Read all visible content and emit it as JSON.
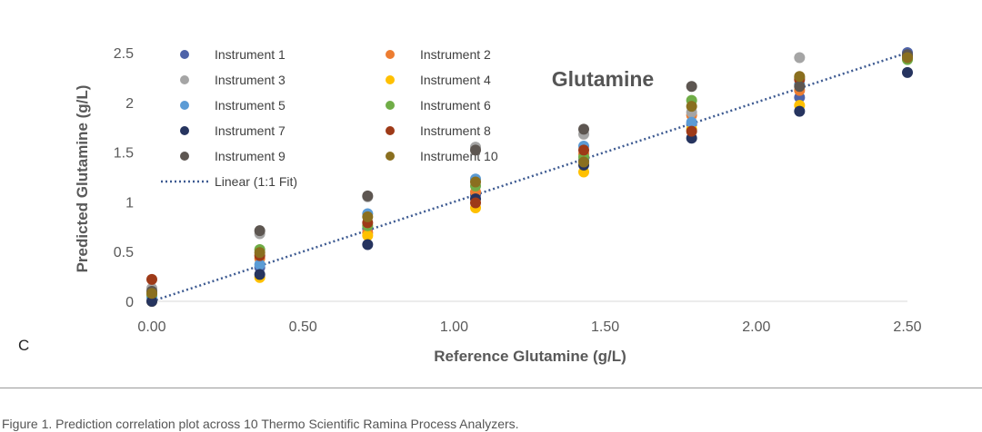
{
  "panel_label": "C",
  "caption": "Figure 1. Prediction correlation plot across 10 Thermo Scientific Ramina Process Analyzers.",
  "chart_data": {
    "type": "scatter",
    "title": "Glutamine",
    "xlabel": "Reference Glutamine (g/L)",
    "ylabel": "Predicted Glutamine (g/L)",
    "xlim": [
      0,
      2.5
    ],
    "ylim": [
      0,
      2.5
    ],
    "x_ticks": [
      0,
      0.5,
      1,
      1.5,
      2,
      2.5
    ],
    "x_tick_labels": [
      "0.00",
      "0.50",
      "1.00",
      "1.50",
      "2.00",
      "2.50"
    ],
    "y_ticks": [
      0,
      0.5,
      1,
      1.5,
      2,
      2.5
    ],
    "y_tick_labels": [
      "0",
      "0.5",
      "1",
      "1.5",
      "2",
      "2.5"
    ],
    "grid": false,
    "legend_position": "top-left",
    "x": [
      0,
      0.357,
      0.714,
      1.071,
      1.429,
      1.786,
      2.143,
      2.5
    ],
    "series": [
      {
        "name": "Instrument 1",
        "color": "#4e63a8",
        "values": [
          0.0,
          0.34,
          0.73,
          1.07,
          1.42,
          1.78,
          2.05,
          2.5
        ]
      },
      {
        "name": "Instrument 2",
        "color": "#ed7d31",
        "values": [
          0.05,
          0.43,
          0.69,
          1.1,
          1.48,
          1.87,
          2.12,
          2.45
        ]
      },
      {
        "name": "Instrument 3",
        "color": "#a5a5a5",
        "values": [
          0.13,
          0.68,
          1.05,
          1.55,
          1.68,
          1.9,
          2.45,
          2.45
        ]
      },
      {
        "name": "Instrument 4",
        "color": "#ffc000",
        "values": [
          0.0,
          0.24,
          0.66,
          0.94,
          1.3,
          1.73,
          1.97,
          2.44
        ]
      },
      {
        "name": "Instrument 5",
        "color": "#5b9bd5",
        "values": [
          0.04,
          0.37,
          0.88,
          1.23,
          1.56,
          1.8,
          2.18,
          2.47
        ]
      },
      {
        "name": "Instrument 6",
        "color": "#70ad47",
        "values": [
          0.07,
          0.52,
          0.76,
          1.16,
          1.45,
          2.02,
          2.25,
          2.43
        ]
      },
      {
        "name": "Instrument 7",
        "color": "#26345f",
        "values": [
          0.0,
          0.27,
          0.57,
          1.03,
          1.37,
          1.64,
          1.91,
          2.3
        ]
      },
      {
        "name": "Instrument 8",
        "color": "#9e3a18",
        "values": [
          0.22,
          0.46,
          0.79,
          0.99,
          1.52,
          1.71,
          2.23,
          2.46
        ]
      },
      {
        "name": "Instrument 9",
        "color": "#5d5651",
        "values": [
          0.1,
          0.71,
          1.06,
          1.52,
          1.73,
          2.16,
          2.16,
          2.48
        ]
      },
      {
        "name": "Instrument 10",
        "color": "#8a6f1f",
        "values": [
          0.08,
          0.49,
          0.85,
          1.2,
          1.4,
          1.96,
          2.26,
          2.45
        ]
      }
    ],
    "fit_line": {
      "name": "Linear (1:1 Fit)",
      "color": "#3d5a91",
      "x": [
        0,
        2.5
      ],
      "y": [
        0,
        2.5
      ]
    }
  }
}
